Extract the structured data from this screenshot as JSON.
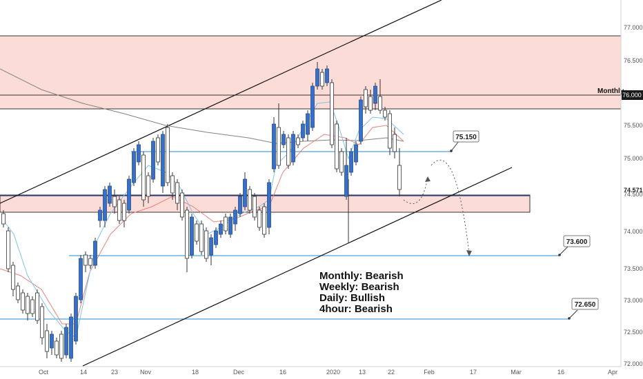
{
  "chart_data": {
    "type": "candlestick",
    "price_scale": {
      "range": [
        71.95,
        77.45
      ],
      "tick_labels": [
        "72.000",
        "72.500",
        "73.000",
        "73.500",
        "74.000",
        "74.500",
        "75.000",
        "75.500",
        "76.000",
        "76.500",
        "77.000"
      ],
      "current_price_label": "74.571",
      "current_price": 74.571,
      "monthly_price_label": "76.000",
      "monthly_price": 76.0
    },
    "time_axis": {
      "labels": [
        "Oct",
        "14",
        "23",
        "Nov",
        "18",
        "Dec",
        "16",
        "2020",
        "13",
        "22",
        "Feb",
        "17",
        "Mar",
        "16",
        "Apr"
      ]
    },
    "zones": [
      {
        "name": "upper-supply-zone",
        "from": 75.8,
        "to": 76.9,
        "color": "#fbdcd7"
      },
      {
        "name": "lower-demand-zone",
        "from": 74.25,
        "to": 74.5,
        "color": "#fbdcd7"
      }
    ],
    "levels": [
      {
        "name": "monthly",
        "price": 76.0,
        "label": "Monthly"
      },
      {
        "name": "resistance",
        "price": 75.15,
        "label": "75.150"
      },
      {
        "name": "target-1",
        "price": 73.6,
        "label": "73.600"
      },
      {
        "name": "target-2",
        "price": 72.65,
        "label": "72.650"
      }
    ],
    "sentiment": [
      "Monthly: Bearish",
      "Weekly: Bearish",
      "Daily: Bullish",
      "4hour: Bearish"
    ],
    "colors": {
      "bull_candle": "#3a6fc4",
      "bear_candle": "#ffffff",
      "wick": "#333333",
      "level_line": "#4fa3e0",
      "fast_ma": "#7cc4f0",
      "slow_ma": "#e8837a",
      "long_ma": "#8a7f7a",
      "zone": "#fbdcd7"
    }
  }
}
